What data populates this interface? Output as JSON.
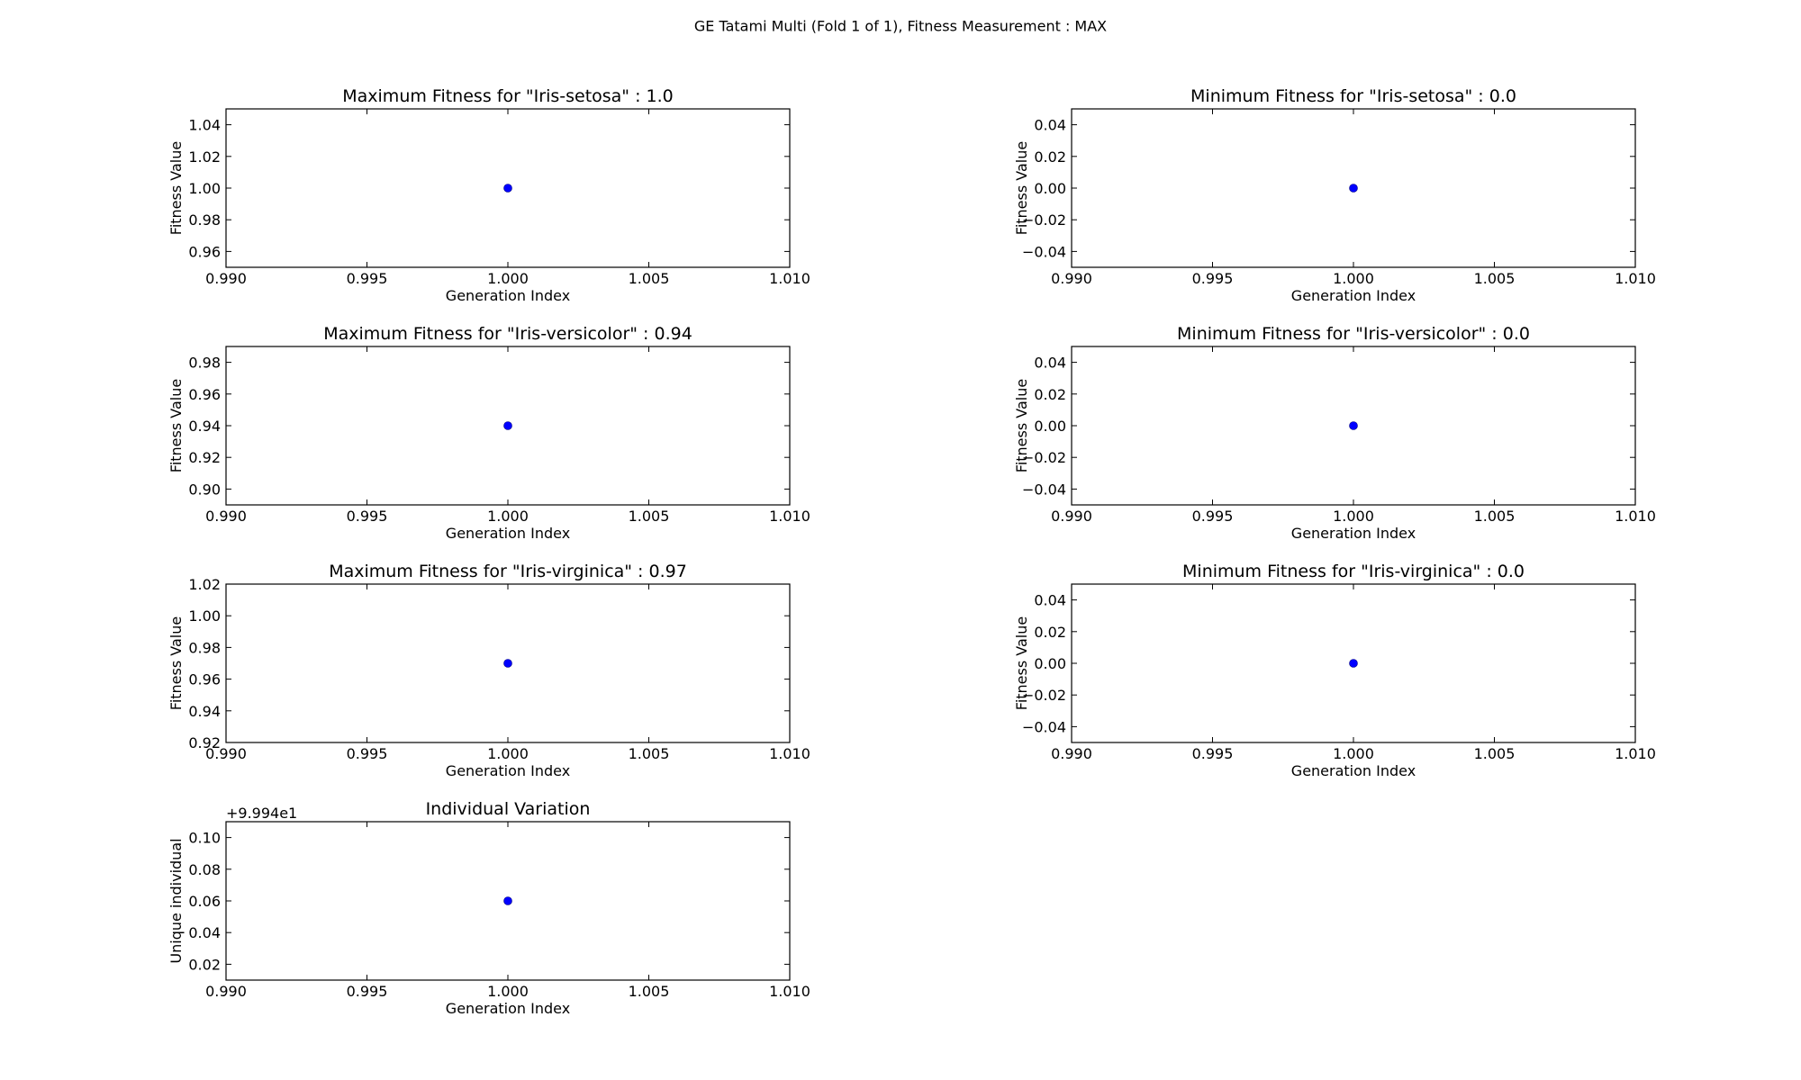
{
  "suptitle": "GE Tatami Multi (Fold 1 of 1), Fitness Measurement : MAX",
  "colors": {
    "marker": "#0000ff",
    "axes": "#000000",
    "background": "#ffffff"
  },
  "chart_data": [
    {
      "type": "scatter",
      "title": "Maximum Fitness for \"Iris-setosa\" : 1.0",
      "xlabel": "Generation Index",
      "ylabel": "Fitness Value",
      "xlim": [
        0.99,
        1.01
      ],
      "ylim": [
        0.95,
        1.05
      ],
      "xticks": [
        "0.990",
        "0.995",
        "1.000",
        "1.005",
        "1.010"
      ],
      "yticks": [
        "0.96",
        "0.98",
        "1.00",
        "1.02",
        "1.04"
      ],
      "x": [
        1.0
      ],
      "y": [
        1.0
      ]
    },
    {
      "type": "scatter",
      "title": "Minimum Fitness for \"Iris-setosa\" : 0.0",
      "xlabel": "Generation Index",
      "ylabel": "Fitness Value",
      "xlim": [
        0.99,
        1.01
      ],
      "ylim": [
        -0.05,
        0.05
      ],
      "xticks": [
        "0.990",
        "0.995",
        "1.000",
        "1.005",
        "1.010"
      ],
      "yticks": [
        "−0.04",
        "−0.02",
        "0.00",
        "0.02",
        "0.04"
      ],
      "x": [
        1.0
      ],
      "y": [
        0.0
      ]
    },
    {
      "type": "scatter",
      "title": "Maximum Fitness for \"Iris-versicolor\" : 0.94",
      "xlabel": "Generation Index",
      "ylabel": "Fitness Value",
      "xlim": [
        0.99,
        1.01
      ],
      "ylim": [
        0.89,
        0.99
      ],
      "xticks": [
        "0.990",
        "0.995",
        "1.000",
        "1.005",
        "1.010"
      ],
      "yticks": [
        "0.90",
        "0.92",
        "0.94",
        "0.96",
        "0.98"
      ],
      "x": [
        1.0
      ],
      "y": [
        0.94
      ]
    },
    {
      "type": "scatter",
      "title": "Minimum Fitness for \"Iris-versicolor\" : 0.0",
      "xlabel": "Generation Index",
      "ylabel": "Fitness Value",
      "xlim": [
        0.99,
        1.01
      ],
      "ylim": [
        -0.05,
        0.05
      ],
      "xticks": [
        "0.990",
        "0.995",
        "1.000",
        "1.005",
        "1.010"
      ],
      "yticks": [
        "−0.04",
        "−0.02",
        "0.00",
        "0.02",
        "0.04"
      ],
      "x": [
        1.0
      ],
      "y": [
        0.0
      ]
    },
    {
      "type": "scatter",
      "title": "Maximum Fitness for \"Iris-virginica\" : 0.97",
      "xlabel": "Generation Index",
      "ylabel": "Fitness Value",
      "xlim": [
        0.99,
        1.01
      ],
      "ylim": [
        0.92,
        1.02
      ],
      "xticks": [
        "0.990",
        "0.995",
        "1.000",
        "1.005",
        "1.010"
      ],
      "yticks": [
        "0.92",
        "0.94",
        "0.96",
        "0.98",
        "1.00",
        "1.02"
      ],
      "x": [
        1.0
      ],
      "y": [
        0.97
      ]
    },
    {
      "type": "scatter",
      "title": "Minimum Fitness for \"Iris-virginica\" : 0.0",
      "xlabel": "Generation Index",
      "ylabel": "Fitness Value",
      "xlim": [
        0.99,
        1.01
      ],
      "ylim": [
        -0.05,
        0.05
      ],
      "xticks": [
        "0.990",
        "0.995",
        "1.000",
        "1.005",
        "1.010"
      ],
      "yticks": [
        "−0.04",
        "−0.02",
        "0.00",
        "0.02",
        "0.04"
      ],
      "x": [
        1.0
      ],
      "y": [
        0.0
      ]
    },
    {
      "type": "scatter",
      "title": "Individual Variation",
      "xlabel": "Generation Index",
      "ylabel": "Unique individual",
      "offset_text": "+9.994e1",
      "xlim": [
        0.99,
        1.01
      ],
      "ylim": [
        0.01,
        0.11
      ],
      "xticks": [
        "0.990",
        "0.995",
        "1.000",
        "1.005",
        "1.010"
      ],
      "yticks": [
        "0.02",
        "0.04",
        "0.06",
        "0.08",
        "0.10"
      ],
      "x": [
        1.0
      ],
      "y": [
        0.06
      ]
    }
  ]
}
